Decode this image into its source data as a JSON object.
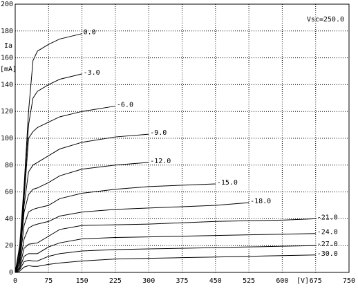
{
  "chart_data": {
    "type": "line",
    "annotation": "Vsc=250.0",
    "y_label": "Ia",
    "y_unit": "[mA]",
    "x_unit": "[V]",
    "x": [
      0,
      10,
      20,
      30,
      40,
      50,
      75,
      100,
      150,
      225,
      300,
      375,
      450,
      525,
      600,
      675
    ],
    "xlim": [
      0,
      750
    ],
    "xticks": [
      0,
      75,
      150,
      225,
      300,
      375,
      450,
      525,
      600,
      675,
      750
    ],
    "ylim": [
      0,
      200
    ],
    "yticks": [
      0,
      20,
      40,
      60,
      80,
      100,
      120,
      140,
      160,
      180,
      200
    ],
    "grid": true,
    "color": "#000000",
    "series": [
      {
        "name": "0.0",
        "values": [
          0,
          20,
          65,
          120,
          158,
          165,
          170,
          174,
          178,
          null,
          null,
          null,
          null,
          null,
          null,
          null
        ]
      },
      {
        "name": "-3.0",
        "values": [
          0,
          18,
          60,
          110,
          130,
          135,
          140,
          144,
          148,
          null,
          null,
          null,
          null,
          null,
          null,
          null
        ]
      },
      {
        "name": "-6.0",
        "values": [
          0,
          15,
          55,
          100,
          105,
          108,
          112,
          116,
          120,
          124,
          null,
          null,
          null,
          null,
          null,
          null
        ]
      },
      {
        "name": "-9.0",
        "values": [
          0,
          12,
          50,
          75,
          80,
          82,
          87,
          92,
          97,
          101,
          103,
          null,
          null,
          null,
          null,
          null
        ]
      },
      {
        "name": "-12.0",
        "values": [
          0,
          10,
          45,
          58,
          62,
          63,
          67,
          72,
          77,
          80,
          82,
          null,
          null,
          null,
          null,
          null
        ]
      },
      {
        "name": "-15.0",
        "values": [
          0,
          8,
          35,
          45,
          47,
          48,
          50,
          55,
          59,
          62,
          64,
          65,
          66,
          null,
          null,
          null
        ]
      },
      {
        "name": "-18.0",
        "values": [
          0,
          6,
          25,
          33,
          35,
          36,
          38,
          42,
          45,
          47,
          48,
          49,
          50,
          52,
          null,
          null
        ]
      },
      {
        "name": "-21.0",
        "values": [
          0,
          4,
          18,
          21,
          21.5,
          22,
          27,
          32,
          35,
          35.5,
          36,
          37,
          38,
          38.5,
          39,
          40
        ]
      },
      {
        "name": "-24.0",
        "values": [
          0,
          3,
          12,
          14,
          14,
          14,
          19,
          22,
          25,
          26,
          26.5,
          27,
          27.5,
          28,
          28.5,
          29
        ]
      },
      {
        "name": "-27.0",
        "values": [
          0,
          2,
          8,
          9,
          8.5,
          8.5,
          12,
          14,
          16,
          17,
          17.5,
          18,
          18.5,
          19,
          19.5,
          20
        ]
      },
      {
        "name": "-30.0",
        "values": [
          0,
          1,
          4,
          5,
          4.5,
          4.5,
          6,
          7,
          8.5,
          10,
          10.5,
          11,
          11.5,
          12,
          12.5,
          13
        ]
      }
    ]
  }
}
